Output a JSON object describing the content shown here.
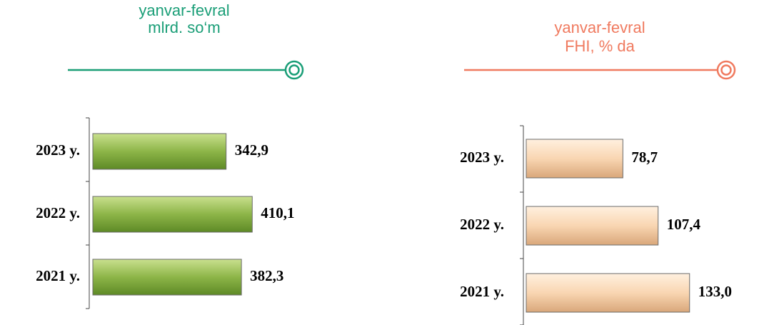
{
  "chart_data": [
    {
      "type": "hbar",
      "title": "yanvar-fevral",
      "subtitle": "mlrd. so‘m",
      "categories": [
        "2023 y.",
        "2022 y.",
        "2021 y."
      ],
      "values": [
        342.9,
        410.1,
        382.3
      ],
      "value_labels": [
        "342,9",
        "410,1",
        "382,3"
      ],
      "color": "#8db548",
      "title_color": "#1a9e77",
      "xlim": [
        0,
        450
      ]
    },
    {
      "type": "hbar",
      "title": "yanvar-fevral",
      "subtitle": "FHI, % da",
      "categories": [
        "2023 y.",
        "2022 y.",
        "2021 y."
      ],
      "values": [
        78.7,
        107.4,
        133.0
      ],
      "value_labels": [
        "78,7",
        "107,4",
        "133,0"
      ],
      "color": "#f9d6b2",
      "title_color": "#f07a5f",
      "xlim": [
        0,
        150
      ]
    }
  ]
}
